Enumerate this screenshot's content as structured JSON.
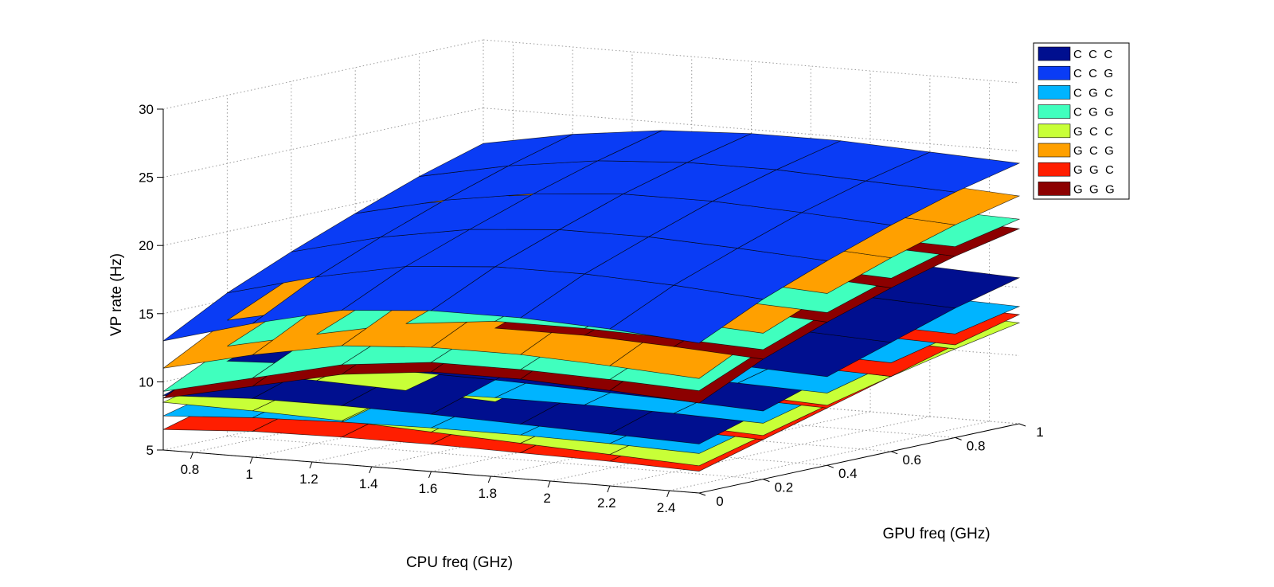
{
  "chart_data": {
    "type": "surface",
    "title": "",
    "xlabel": "CPU freq (GHz)",
    "ylabel": "GPU freq (GHz)",
    "zlabel": "VP rate (Hz)",
    "x_ticks": [
      "0.8",
      "1",
      "1.2",
      "1.4",
      "1.6",
      "1.8",
      "2",
      "2.2",
      "2.4"
    ],
    "y_ticks": [
      "0",
      "0.2",
      "0.4",
      "0.6",
      "0.8",
      "1"
    ],
    "z_ticks": [
      "5",
      "10",
      "15",
      "20",
      "25",
      "30"
    ],
    "xlim": [
      0.7,
      2.5
    ],
    "ylim": [
      0,
      1
    ],
    "zlim": [
      5,
      30
    ],
    "grid": true,
    "legend_position": "top-right",
    "x_grid": [
      0.7,
      1.0,
      1.3,
      1.6,
      1.9,
      2.2,
      2.5
    ],
    "y_grid": [
      0.0,
      0.2,
      0.4,
      0.6,
      0.8,
      1.0
    ],
    "series": [
      {
        "name": "C  C  C",
        "color": "#000f8f",
        "values": [
          [
            9.0,
            10.5,
            12.0,
            13.5,
            15.0,
            16.2
          ],
          [
            9.3,
            10.8,
            12.3,
            13.8,
            15.3,
            16.5
          ],
          [
            9.3,
            10.8,
            12.3,
            13.8,
            15.3,
            16.5
          ],
          [
            9.2,
            10.7,
            12.2,
            13.7,
            15.2,
            16.4
          ],
          [
            9.0,
            10.5,
            12.0,
            13.5,
            15.0,
            16.2
          ],
          [
            8.8,
            10.3,
            11.8,
            13.3,
            14.8,
            16.0
          ],
          [
            8.6,
            10.0,
            11.5,
            13.0,
            14.5,
            15.7
          ]
        ]
      },
      {
        "name": "C  C  G",
        "color": "#0a3cf5",
        "values": [
          [
            13.0,
            15.5,
            17.5,
            19.3,
            21.0,
            22.4
          ],
          [
            14.8,
            17.2,
            19.1,
            20.8,
            22.3,
            23.6
          ],
          [
            16.3,
            18.5,
            20.2,
            21.8,
            23.2,
            24.4
          ],
          [
            16.8,
            19.0,
            20.7,
            22.3,
            23.6,
            24.7
          ],
          [
            16.8,
            19.0,
            20.7,
            22.3,
            23.6,
            24.7
          ],
          [
            16.5,
            18.7,
            20.4,
            22.0,
            23.3,
            24.4
          ],
          [
            16.0,
            18.2,
            20.0,
            21.6,
            23.0,
            24.1
          ]
        ]
      },
      {
        "name": "C  G  C",
        "color": "#00b4ff",
        "values": [
          [
            7.5,
            8.7,
            9.9,
            11.1,
            12.2,
            13.2
          ],
          [
            7.9,
            9.1,
            10.3,
            11.5,
            12.6,
            13.6
          ],
          [
            8.1,
            9.3,
            10.5,
            11.7,
            12.8,
            13.8
          ],
          [
            8.2,
            9.4,
            10.6,
            11.8,
            12.9,
            13.9
          ],
          [
            8.2,
            9.4,
            10.6,
            11.8,
            12.9,
            13.9
          ],
          [
            8.1,
            9.3,
            10.5,
            11.7,
            12.8,
            13.8
          ],
          [
            7.9,
            9.1,
            10.3,
            11.5,
            12.6,
            13.6
          ]
        ]
      },
      {
        "name": "C  G  G",
        "color": "#40ffbe",
        "values": [
          [
            9.3,
            11.6,
            13.6,
            15.3,
            16.8,
            18.0
          ],
          [
            10.8,
            13.0,
            14.9,
            16.5,
            17.9,
            19.0
          ],
          [
            12.3,
            14.3,
            16.0,
            17.5,
            18.8,
            19.9
          ],
          [
            13.0,
            15.0,
            16.7,
            18.2,
            19.4,
            20.4
          ],
          [
            13.0,
            15.0,
            16.7,
            18.2,
            19.4,
            20.4
          ],
          [
            12.8,
            14.8,
            16.5,
            18.0,
            19.2,
            20.2
          ],
          [
            12.5,
            14.5,
            16.2,
            17.7,
            19.0,
            20.0
          ]
        ]
      },
      {
        "name": "G  C  C",
        "color": "#c8ff37",
        "values": [
          [
            8.5,
            9.7,
            10.9,
            12.0,
            13.0,
            13.9
          ],
          [
            8.4,
            9.6,
            10.8,
            11.9,
            12.9,
            13.8
          ],
          [
            8.2,
            9.4,
            10.6,
            11.7,
            12.7,
            13.6
          ],
          [
            7.9,
            9.1,
            10.3,
            11.4,
            12.4,
            13.3
          ],
          [
            7.6,
            8.8,
            10.0,
            11.1,
            12.1,
            13.0
          ],
          [
            7.3,
            8.5,
            9.7,
            10.8,
            11.8,
            12.7
          ],
          [
            7.0,
            8.2,
            9.4,
            10.5,
            11.5,
            12.4
          ]
        ]
      },
      {
        "name": "G  C  G",
        "color": "#ffa000",
        "values": [
          [
            11.0,
            13.5,
            15.6,
            17.4,
            19.0,
            20.4
          ],
          [
            12.5,
            14.9,
            16.9,
            18.6,
            20.1,
            21.3
          ],
          [
            13.7,
            16.0,
            17.9,
            19.5,
            20.9,
            22.0
          ],
          [
            14.1,
            16.4,
            18.3,
            19.9,
            21.3,
            22.4
          ],
          [
            14.1,
            16.4,
            18.3,
            19.9,
            21.3,
            22.4
          ],
          [
            13.8,
            16.1,
            18.0,
            19.6,
            21.0,
            22.1
          ],
          [
            13.4,
            15.7,
            17.6,
            19.2,
            20.6,
            21.7
          ]
        ]
      },
      {
        "name": "G  G  C",
        "color": "#ff1e00",
        "values": [
          [
            6.5,
            7.8,
            9.1,
            10.4,
            11.7,
            12.9
          ],
          [
            6.9,
            8.2,
            9.5,
            10.8,
            12.1,
            13.3
          ],
          [
            7.0,
            8.3,
            9.6,
            10.9,
            12.2,
            13.4
          ],
          [
            7.0,
            8.3,
            9.6,
            10.9,
            12.2,
            13.4
          ],
          [
            6.9,
            8.2,
            9.5,
            10.8,
            12.1,
            13.3
          ],
          [
            6.8,
            8.1,
            9.4,
            10.7,
            12.0,
            13.2
          ],
          [
            6.6,
            7.9,
            9.2,
            10.5,
            11.8,
            13.0
          ]
        ]
      },
      {
        "name": "G  G  G",
        "color": "#8c0000",
        "values": [
          [
            8.8,
            11.2,
            13.2,
            14.9,
            16.4,
            17.6
          ],
          [
            10.2,
            12.5,
            14.4,
            16.0,
            17.4,
            18.5
          ],
          [
            11.6,
            13.8,
            15.6,
            17.1,
            18.4,
            19.4
          ],
          [
            12.3,
            14.5,
            16.2,
            17.7,
            18.9,
            19.9
          ],
          [
            12.3,
            14.5,
            16.2,
            17.7,
            18.9,
            19.9
          ],
          [
            12.0,
            14.2,
            15.9,
            17.4,
            18.6,
            19.6
          ],
          [
            11.6,
            13.8,
            15.5,
            17.0,
            18.3,
            19.3
          ]
        ]
      }
    ]
  }
}
